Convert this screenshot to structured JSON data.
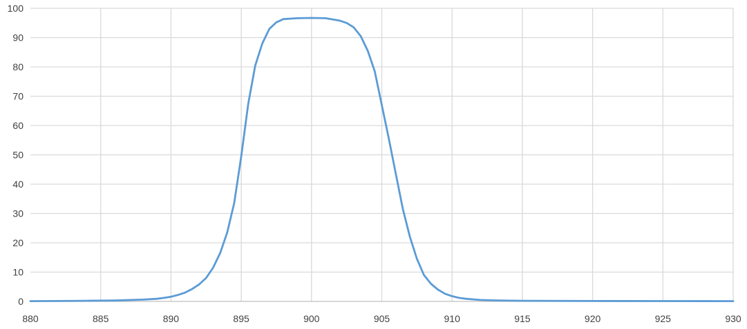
{
  "chart_data": {
    "type": "line",
    "title": "",
    "xlabel": "",
    "ylabel": "",
    "xlim": [
      880,
      930
    ],
    "ylim": [
      0,
      100
    ],
    "xticks": [
      880,
      885,
      890,
      895,
      900,
      905,
      910,
      915,
      920,
      925,
      930
    ],
    "yticks": [
      0,
      10,
      20,
      30,
      40,
      50,
      60,
      70,
      80,
      90,
      100
    ],
    "grid": true,
    "legend": "none",
    "colors": {
      "series": "#5b9bd5",
      "grid": "#d9d9d9",
      "axis": "#bfbfbf",
      "text": "#404040"
    },
    "series": [
      {
        "x": [
          880,
          884,
          886,
          888,
          889,
          889.5,
          890,
          890.5,
          891,
          891.5,
          892,
          892.5,
          893,
          893.5,
          894,
          894.5,
          895,
          895.5,
          896,
          896.5,
          897,
          897.5,
          898,
          899,
          900,
          901,
          902,
          902.5,
          903,
          903.5,
          904,
          904.5,
          905,
          905.5,
          906,
          906.5,
          907,
          907.5,
          908,
          908.5,
          909,
          909.5,
          910,
          910.5,
          911,
          912,
          913,
          915,
          920,
          925,
          930
        ],
        "y": [
          0.1,
          0.2,
          0.3,
          0.6,
          0.9,
          1.2,
          1.6,
          2.2,
          3.0,
          4.2,
          5.8,
          8.0,
          11.5,
          16.5,
          23.5,
          33.5,
          49.5,
          67.5,
          80.5,
          88.0,
          93.0,
          95.2,
          96.3,
          96.6,
          96.7,
          96.6,
          95.8,
          95.0,
          93.5,
          90.5,
          85.5,
          78.5,
          67.0,
          55.5,
          43.5,
          31.5,
          22.0,
          14.5,
          9.0,
          6.0,
          4.0,
          2.6,
          1.8,
          1.2,
          0.9,
          0.5,
          0.35,
          0.2,
          0.15,
          0.12,
          0.1
        ]
      }
    ]
  }
}
